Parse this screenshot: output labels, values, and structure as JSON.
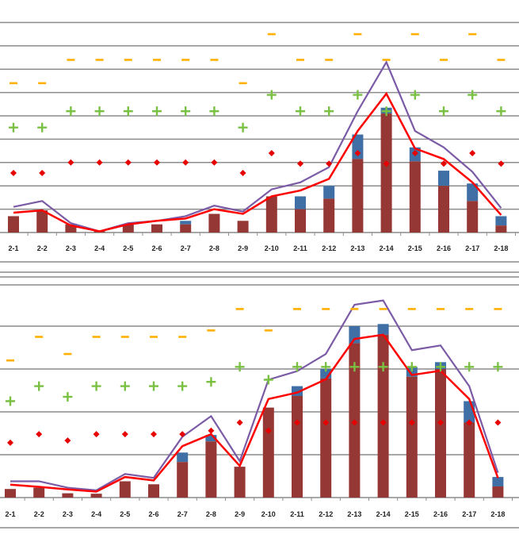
{
  "colors": {
    "bar_base": "#953735",
    "bar_top": "#3f6fa5",
    "line_upper": "#7b5aa6",
    "line_lower": "#ff0000",
    "diamond": "#e60000",
    "plus": "#7ac143",
    "dash": "#ffb000",
    "grid": "#8c8c8c"
  },
  "chart_data": [
    {
      "type": "bar",
      "title": "",
      "xlabel": "",
      "ylabel": "",
      "grid": true,
      "ylim": [
        0,
        10
      ],
      "categories": [
        "2-1",
        "2-2",
        "2-3",
        "2-4",
        "2-5",
        "2-6",
        "2-7",
        "2-8",
        "2-9",
        "2-10",
        "2-11",
        "2-12",
        "2-13",
        "2-14",
        "2-15",
        "2-16",
        "2-17",
        "2-18"
      ],
      "bars_base": [
        0.7,
        0.95,
        0.35,
        0.05,
        0.35,
        0.35,
        0.35,
        0.8,
        0.5,
        1.55,
        1.0,
        1.45,
        3.15,
        5.1,
        3.05,
        2.0,
        1.35,
        0.3
      ],
      "bars_top": [
        0.7,
        0.95,
        0.35,
        0.05,
        0.35,
        0.35,
        0.5,
        0.8,
        0.5,
        1.55,
        1.55,
        2.0,
        4.2,
        5.35,
        3.65,
        2.65,
        2.1,
        0.7
      ],
      "line_upper": [
        1.1,
        1.35,
        0.4,
        0.05,
        0.4,
        0.5,
        0.7,
        1.15,
        0.9,
        1.85,
        2.15,
        2.8,
        5.2,
        7.3,
        4.35,
        3.65,
        2.6,
        1.05
      ],
      "line_lower": [
        0.85,
        0.95,
        0.3,
        0.05,
        0.35,
        0.5,
        0.6,
        1.0,
        0.8,
        1.55,
        1.8,
        2.3,
        4.35,
        5.95,
        3.6,
        3.15,
        2.15,
        0.75
      ],
      "diamonds": [
        2.55,
        2.55,
        3.0,
        3.0,
        3.0,
        3.0,
        3.0,
        3.0,
        2.55,
        3.4,
        2.95,
        2.95,
        3.4,
        2.95,
        3.4,
        2.95,
        3.4,
        2.95
      ],
      "pluses": [
        4.5,
        4.5,
        5.2,
        5.2,
        5.2,
        5.2,
        5.2,
        5.2,
        4.5,
        5.9,
        5.2,
        5.2,
        5.9,
        5.2,
        5.9,
        5.2,
        5.9,
        5.2
      ],
      "dashes": [
        6.4,
        6.4,
        7.4,
        7.4,
        7.4,
        7.4,
        7.4,
        7.4,
        6.4,
        8.5,
        7.4,
        7.4,
        8.5,
        7.4,
        8.5,
        7.4,
        8.5,
        7.4
      ]
    },
    {
      "type": "bar",
      "title": "",
      "xlabel": "",
      "ylabel": "",
      "grid": true,
      "ylim": [
        0,
        5
      ],
      "categories": [
        "2-1",
        "2-2",
        "2-3",
        "2-4",
        "2-5",
        "2-6",
        "2-7",
        "2-8",
        "2-9",
        "2-10",
        "2-11",
        "2-12",
        "2-13",
        "2-14",
        "2-15",
        "2-16",
        "2-17",
        "2-18"
      ],
      "bars_base": [
        0.2,
        0.23,
        0.1,
        0.09,
        0.38,
        0.31,
        0.83,
        1.31,
        0.72,
        2.1,
        2.37,
        2.78,
        3.6,
        3.8,
        2.82,
        3.0,
        1.75,
        0.26
      ],
      "bars_top": [
        0.2,
        0.23,
        0.1,
        0.09,
        0.38,
        0.31,
        1.05,
        1.46,
        0.72,
        2.1,
        2.6,
        3.0,
        4.0,
        4.05,
        3.05,
        3.16,
        2.25,
        0.48
      ],
      "line_upper": [
        0.38,
        0.38,
        0.23,
        0.17,
        0.55,
        0.46,
        1.42,
        1.9,
        0.85,
        2.75,
        2.95,
        3.35,
        4.5,
        4.6,
        3.44,
        3.55,
        2.6,
        0.58
      ],
      "line_lower": [
        0.3,
        0.25,
        0.19,
        0.14,
        0.48,
        0.4,
        1.2,
        1.48,
        0.74,
        2.3,
        2.45,
        2.76,
        3.7,
        3.8,
        2.86,
        2.96,
        2.3,
        0.46
      ],
      "diamonds": [
        1.28,
        1.48,
        1.33,
        1.48,
        1.48,
        1.48,
        1.48,
        1.56,
        1.75,
        1.56,
        1.75,
        1.75,
        1.75,
        1.75,
        1.75,
        1.75,
        1.75,
        1.75
      ],
      "pluses": [
        2.25,
        2.6,
        2.35,
        2.6,
        2.6,
        2.6,
        2.6,
        2.7,
        3.05,
        2.75,
        3.05,
        3.05,
        3.05,
        3.05,
        3.05,
        3.05,
        3.05,
        3.05
      ],
      "dashes": [
        3.2,
        3.75,
        3.35,
        3.75,
        3.75,
        3.75,
        3.75,
        3.9,
        4.4,
        3.9,
        4.4,
        4.4,
        4.4,
        4.4,
        4.4,
        4.4,
        4.4,
        4.4
      ]
    }
  ]
}
